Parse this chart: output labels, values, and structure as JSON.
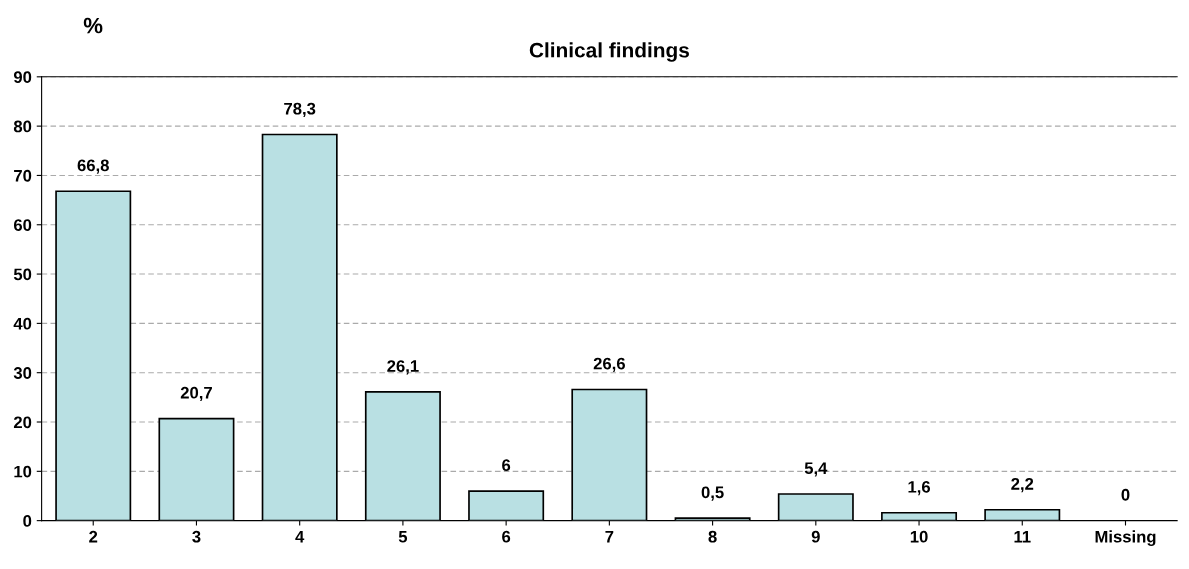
{
  "chart_data": {
    "type": "bar",
    "title": "Clinical findings",
    "ylabel": "%",
    "categories": [
      "2",
      "3",
      "4",
      "5",
      "6",
      "7",
      "8",
      "9",
      "10",
      "11",
      "Missing"
    ],
    "values": [
      66.8,
      20.7,
      78.3,
      26.1,
      6,
      26.6,
      0.5,
      5.4,
      1.6,
      2.2,
      0
    ],
    "value_labels": [
      "66,8",
      "20,7",
      "78,3",
      "26,1",
      "6",
      "26,6",
      "0,5",
      "5,4",
      "1,6",
      "2,2",
      "0"
    ],
    "color": "#b9e0e3",
    "ylim": [
      0,
      90
    ],
    "yticks": [
      0,
      10,
      20,
      30,
      40,
      50,
      60,
      70,
      80,
      90
    ],
    "grid": "y",
    "legend": false
  }
}
